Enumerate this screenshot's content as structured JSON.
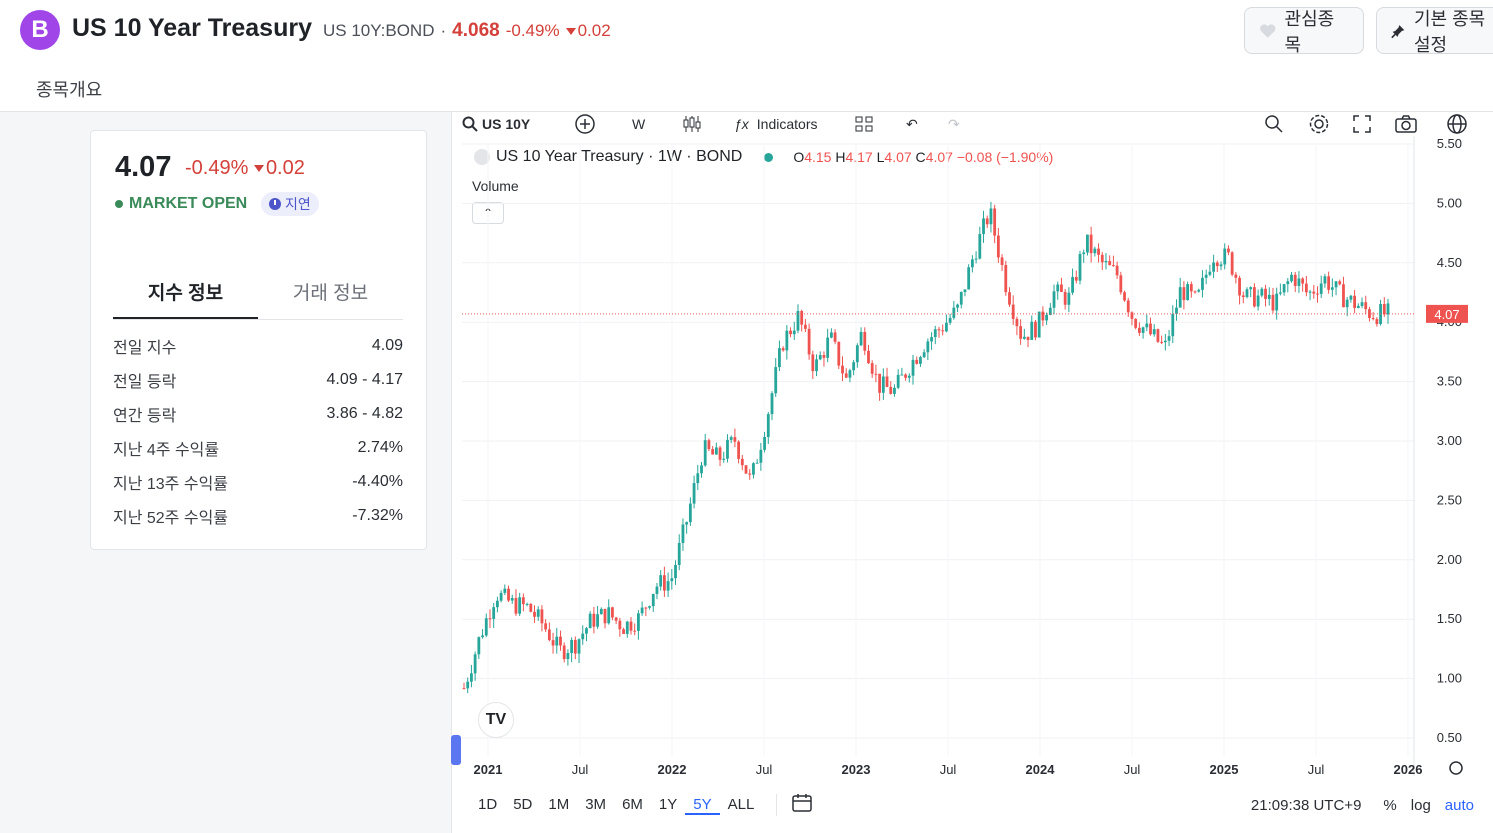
{
  "header": {
    "logo_letter": "B",
    "title": "US 10 Year Treasury",
    "symbol": "US 10Y:BOND",
    "separator": "·",
    "price": "4.068",
    "change_pct": "-0.49%",
    "change_abs": "0.02",
    "watchlist_label": "관심종목",
    "pin_label": "기본 종목설정",
    "tab_overview": "종목개요"
  },
  "card": {
    "price": "4.07",
    "change_pct": "-0.49%",
    "change_abs": "0.02",
    "status": "MARKET OPEN",
    "delay": "지연",
    "tabs": [
      {
        "label": "지수 정보"
      },
      {
        "label": "거래 정보"
      }
    ],
    "rows": [
      {
        "k": "전일 지수",
        "v": "4.09"
      },
      {
        "k": "전일 등락",
        "v": "4.09 - 4.17"
      },
      {
        "k": "연간 등락",
        "v": "3.86 - 4.82"
      },
      {
        "k": "지난 4주 수익률",
        "v": "2.74%"
      },
      {
        "k": "지난 13주 수익률",
        "v": "-4.40%"
      },
      {
        "k": "지난 52주 수익률",
        "v": "-7.32%"
      }
    ]
  },
  "chart_toolbar": {
    "symbol": "US 10Y",
    "interval": "W",
    "indicators": "Indicators"
  },
  "legend": {
    "name": "US 10 Year Treasury · 1W · BOND",
    "o_label": "O",
    "o": "4.15",
    "h_label": "H",
    "h": "4.17",
    "l_label": "L",
    "l": "4.07",
    "c_label": "C",
    "c": "4.07",
    "chg": "−0.08 (−1.90%)",
    "volume": "Volume"
  },
  "bottom": {
    "ranges": [
      "1D",
      "5D",
      "1M",
      "3M",
      "6M",
      "1Y",
      "5Y",
      "ALL"
    ],
    "selected": "5Y",
    "time": "21:09:38 UTC+9",
    "pct": "%",
    "log": "log",
    "auto": "auto"
  },
  "colors": {
    "up": "#26a69a",
    "down": "#ef5350",
    "accent": "#2962ff",
    "price_red": "#d4403a"
  },
  "chart_data": {
    "type": "candlestick",
    "y_axis_ticks": [
      "5.50",
      "5.00",
      "4.50",
      "4.00",
      "3.50",
      "3.00",
      "2.50",
      "2.00",
      "1.50",
      "1.00",
      "0.50"
    ],
    "x_axis_ticks": [
      "2021",
      "Jul",
      "2022",
      "Jul",
      "2023",
      "Jul",
      "2024",
      "Jul",
      "2025",
      "Jul",
      "2026"
    ],
    "ylim": [
      0.5,
      5.5
    ],
    "last_price_label": "4.07",
    "close_path": [
      [
        "2021-01",
        0.92
      ],
      [
        "2021-02",
        1.35
      ],
      [
        "2021-03",
        1.72
      ],
      [
        "2021-04",
        1.63
      ],
      [
        "2021-05",
        1.6
      ],
      [
        "2021-06",
        1.45
      ],
      [
        "2021-07",
        1.23
      ],
      [
        "2021-08",
        1.3
      ],
      [
        "2021-09",
        1.49
      ],
      [
        "2021-10",
        1.55
      ],
      [
        "2021-11",
        1.44
      ],
      [
        "2021-12",
        1.51
      ],
      [
        "2022-01",
        1.78
      ],
      [
        "2022-02",
        1.83
      ],
      [
        "2022-03",
        2.34
      ],
      [
        "2022-04",
        2.93
      ],
      [
        "2022-05",
        2.85
      ],
      [
        "2022-06",
        3.01
      ],
      [
        "2022-07",
        2.65
      ],
      [
        "2022-08",
        3.19
      ],
      [
        "2022-09",
        3.83
      ],
      [
        "2022-10",
        4.05
      ],
      [
        "2022-11",
        3.61
      ],
      [
        "2022-12",
        3.87
      ],
      [
        "2023-01",
        3.51
      ],
      [
        "2023-02",
        3.92
      ],
      [
        "2023-03",
        3.47
      ],
      [
        "2023-04",
        3.42
      ],
      [
        "2023-05",
        3.64
      ],
      [
        "2023-06",
        3.84
      ],
      [
        "2023-07",
        3.96
      ],
      [
        "2023-08",
        4.11
      ],
      [
        "2023-09",
        4.57
      ],
      [
        "2023-10",
        4.93
      ],
      [
        "2023-11",
        4.33
      ],
      [
        "2023-12",
        3.88
      ],
      [
        "2024-01",
        3.97
      ],
      [
        "2024-02",
        4.25
      ],
      [
        "2024-03",
        4.2
      ],
      [
        "2024-04",
        4.68
      ],
      [
        "2024-05",
        4.5
      ],
      [
        "2024-06",
        4.4
      ],
      [
        "2024-07",
        4.03
      ],
      [
        "2024-08",
        3.91
      ],
      [
        "2024-09",
        3.78
      ],
      [
        "2024-10",
        4.28
      ],
      [
        "2024-11",
        4.17
      ],
      [
        "2024-12",
        4.57
      ],
      [
        "2025-01",
        4.54
      ],
      [
        "2025-02",
        4.21
      ],
      [
        "2025-03",
        4.21
      ],
      [
        "2025-04",
        4.16
      ],
      [
        "2025-05",
        4.4
      ],
      [
        "2025-06",
        4.23
      ],
      [
        "2025-07",
        4.37
      ],
      [
        "2025-08",
        4.23
      ],
      [
        "2025-09",
        4.15
      ],
      [
        "2025-10",
        4.07
      ],
      [
        "2025-11",
        4.07
      ]
    ]
  }
}
